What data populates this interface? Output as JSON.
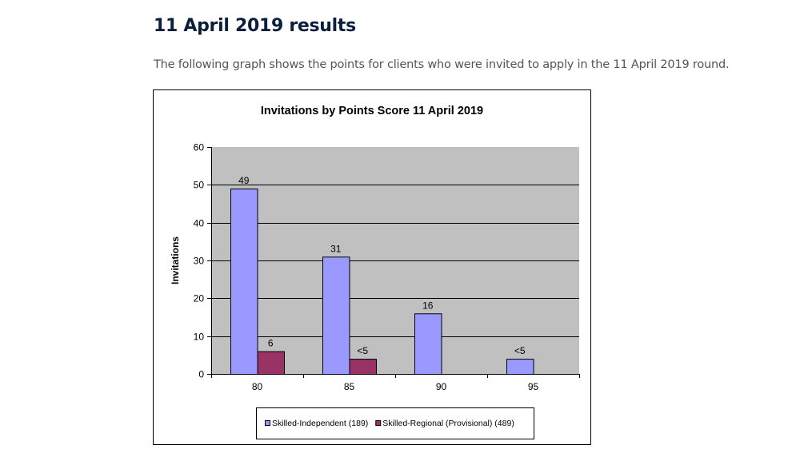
{
  "page": {
    "heading": "11 April 2019 results",
    "intro": "The following graph shows the points for clients who were invited to apply in the 11 April 2019 round."
  },
  "colors": {
    "series1": "#9999ff",
    "series2": "#993366",
    "plot_bg": "#c0c0c0"
  },
  "chart_data": {
    "type": "bar",
    "title": "Invitations by Points Score 11 April 2019",
    "xlabel": "",
    "ylabel": "Invitations",
    "ylim": [
      0,
      60
    ],
    "yticks": [
      0,
      10,
      20,
      30,
      40,
      50,
      60
    ],
    "categories": [
      "80",
      "85",
      "90",
      "95"
    ],
    "grid": true,
    "legend_position": "bottom",
    "series": [
      {
        "name": "Skilled-Independent (189)",
        "values": [
          49,
          31,
          16,
          4
        ],
        "labels": [
          "49",
          "31",
          "16",
          "<5"
        ]
      },
      {
        "name": "Skilled-Regional (Provisional) (489)",
        "values": [
          6,
          4,
          null,
          null
        ],
        "labels": [
          "6",
          "<5",
          null,
          null
        ]
      }
    ]
  }
}
